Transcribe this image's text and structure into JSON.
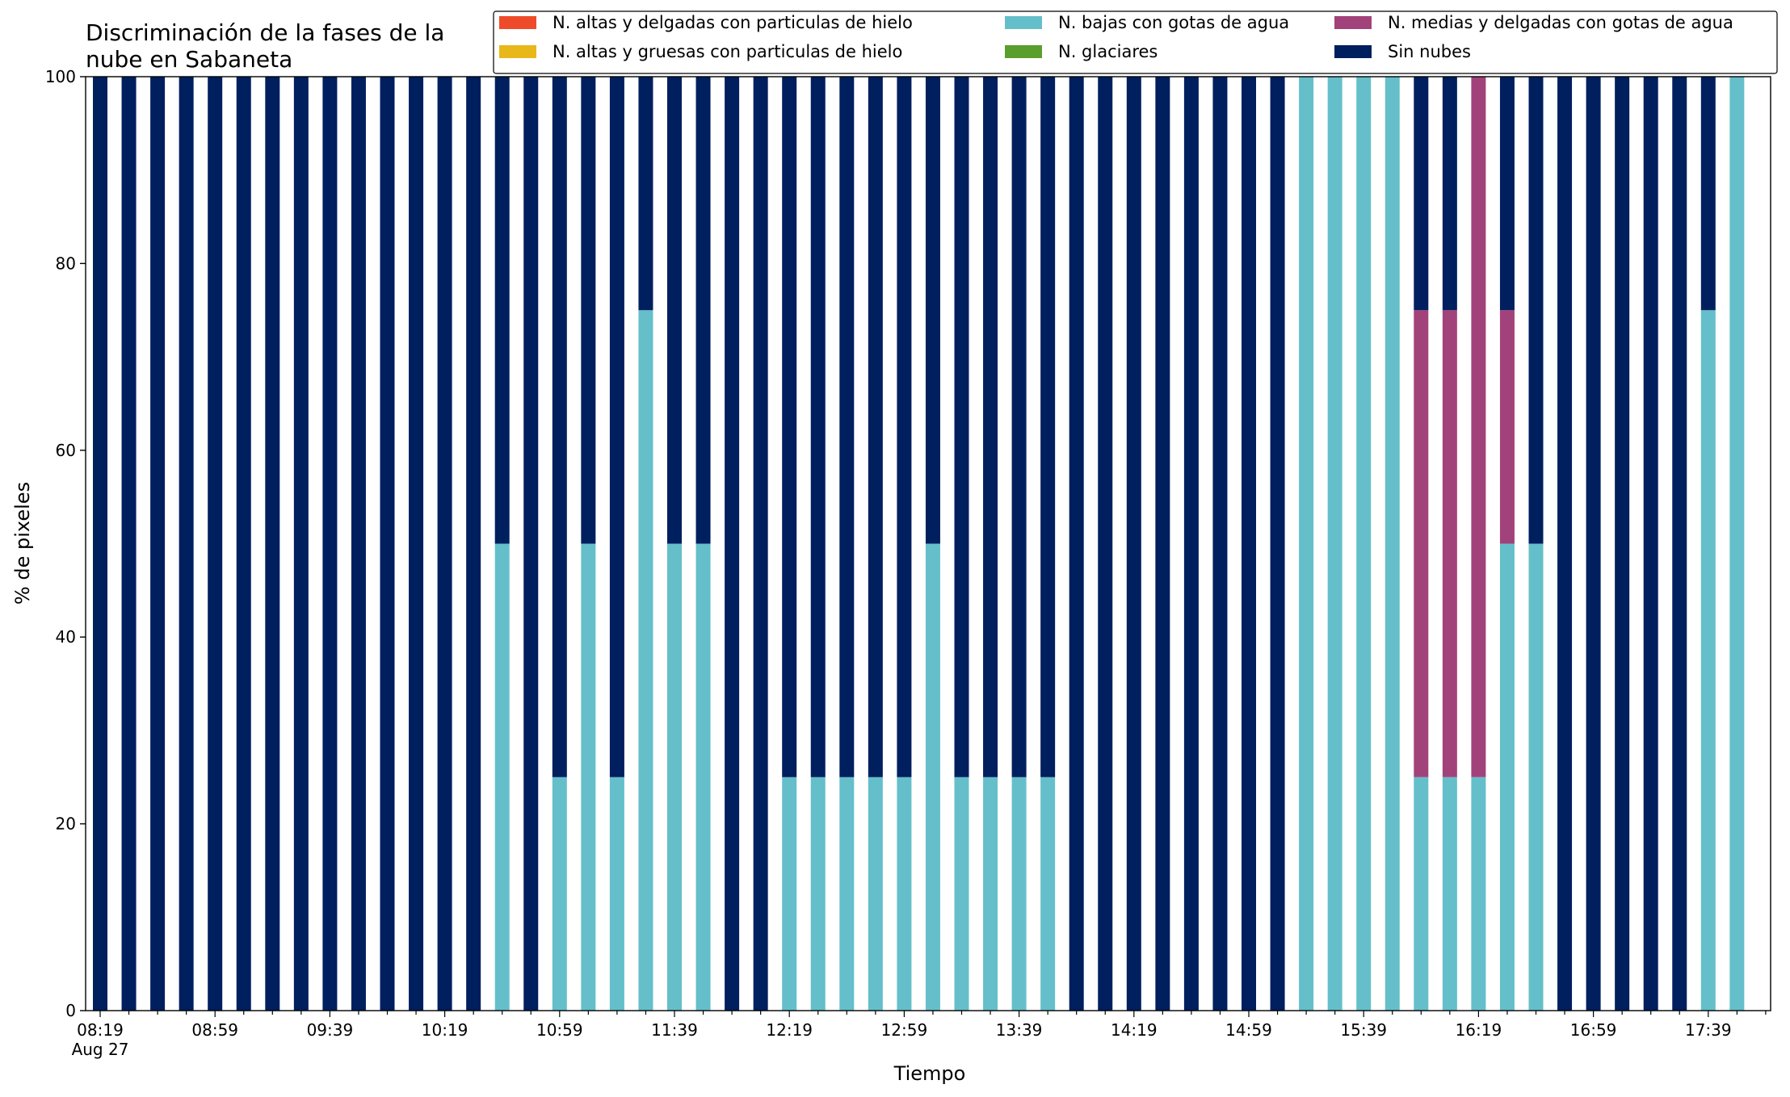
{
  "chart_data": {
    "type": "bar",
    "stacked": true,
    "title": "Discriminación de la fases de la\nnube en Sabaneta",
    "xlabel": "Tiempo",
    "ylabel": "% de pixeles",
    "ylim": [
      0,
      100
    ],
    "yticks": [
      0,
      20,
      40,
      60,
      80,
      100
    ],
    "xticklabels": [
      "08:19\nAug 27",
      "08:59",
      "09:39",
      "10:19",
      "10:59",
      "11:39",
      "12:19",
      "12:59",
      "13:39",
      "14:19",
      "14:59",
      "15:39",
      "16:19",
      "16:59",
      "17:39"
    ],
    "x": [
      "08:19",
      "08:29",
      "08:39",
      "08:49",
      "08:59",
      "09:09",
      "09:19",
      "09:29",
      "09:39",
      "09:49",
      "09:59",
      "10:09",
      "10:19",
      "10:29",
      "10:39",
      "10:49",
      "10:59",
      "11:09",
      "11:19",
      "11:29",
      "11:39",
      "11:49",
      "11:59",
      "12:09",
      "12:19",
      "12:29",
      "12:39",
      "12:49",
      "12:59",
      "13:09",
      "13:19",
      "13:29",
      "13:39",
      "13:49",
      "13:59",
      "14:09",
      "14:19",
      "14:29",
      "14:39",
      "14:49",
      "14:59",
      "15:09",
      "15:19",
      "15:29",
      "15:39",
      "15:49",
      "15:59",
      "16:09",
      "16:19",
      "16:29",
      "16:39",
      "16:49",
      "16:59",
      "17:09",
      "17:19",
      "17:29",
      "17:39",
      "17:49"
    ],
    "grid": false,
    "legend_position": "top-right",
    "legend_columns": 3,
    "series": [
      {
        "name": "N. altas y delgadas con particulas de hielo",
        "color": "#ee4b2b",
        "values": [
          0,
          0,
          0,
          0,
          0,
          0,
          0,
          0,
          0,
          0,
          0,
          0,
          0,
          0,
          0,
          0,
          0,
          0,
          0,
          0,
          0,
          0,
          0,
          0,
          0,
          0,
          0,
          0,
          0,
          0,
          0,
          0,
          0,
          0,
          0,
          0,
          0,
          0,
          0,
          0,
          0,
          0,
          0,
          0,
          0,
          0,
          0,
          0,
          0,
          0,
          0,
          0,
          0,
          0,
          0,
          0,
          0,
          0
        ]
      },
      {
        "name": "N. altas y gruesas con particulas de hielo",
        "color": "#e8b81a",
        "values": [
          0,
          0,
          0,
          0,
          0,
          0,
          0,
          0,
          0,
          0,
          0,
          0,
          0,
          0,
          0,
          0,
          0,
          0,
          0,
          0,
          0,
          0,
          0,
          0,
          0,
          0,
          0,
          0,
          0,
          0,
          0,
          0,
          0,
          0,
          0,
          0,
          0,
          0,
          0,
          0,
          0,
          0,
          0,
          0,
          0,
          0,
          0,
          0,
          0,
          0,
          0,
          0,
          0,
          0,
          0,
          0,
          0,
          0
        ]
      },
      {
        "name": "N. bajas con gotas de agua",
        "color": "#64bfca",
        "values": [
          0,
          0,
          0,
          0,
          0,
          0,
          0,
          0,
          0,
          0,
          0,
          0,
          0,
          0,
          50,
          0,
          25,
          50,
          25,
          75,
          50,
          50,
          0,
          0,
          25,
          25,
          25,
          25,
          25,
          50,
          25,
          25,
          25,
          25,
          0,
          0,
          0,
          0,
          0,
          0,
          0,
          0,
          100,
          100,
          100,
          100,
          25,
          25,
          25,
          50,
          50,
          0,
          0,
          0,
          0,
          0,
          75,
          100
        ]
      },
      {
        "name": "N. glaciares",
        "color": "#5a9e2e",
        "values": [
          0,
          0,
          0,
          0,
          0,
          0,
          0,
          0,
          0,
          0,
          0,
          0,
          0,
          0,
          0,
          0,
          0,
          0,
          0,
          0,
          0,
          0,
          0,
          0,
          0,
          0,
          0,
          0,
          0,
          0,
          0,
          0,
          0,
          0,
          0,
          0,
          0,
          0,
          0,
          0,
          0,
          0,
          0,
          0,
          0,
          0,
          0,
          0,
          0,
          0,
          0,
          0,
          0,
          0,
          0,
          0,
          0,
          0
        ]
      },
      {
        "name": "N. medias y delgadas con gotas de agua",
        "color": "#a2427a",
        "values": [
          0,
          0,
          0,
          0,
          0,
          0,
          0,
          0,
          0,
          0,
          0,
          0,
          0,
          0,
          0,
          0,
          0,
          0,
          0,
          0,
          0,
          0,
          0,
          0,
          0,
          0,
          0,
          0,
          0,
          0,
          0,
          0,
          0,
          0,
          0,
          0,
          0,
          0,
          0,
          0,
          0,
          0,
          0,
          0,
          0,
          0,
          50,
          50,
          75,
          25,
          0,
          0,
          0,
          0,
          0,
          0,
          0,
          0
        ]
      },
      {
        "name": "Sin nubes",
        "color": "#001f5e",
        "values": [
          100,
          100,
          100,
          100,
          100,
          100,
          100,
          100,
          100,
          100,
          100,
          100,
          100,
          100,
          50,
          100,
          75,
          50,
          75,
          25,
          50,
          50,
          100,
          100,
          75,
          75,
          75,
          75,
          75,
          50,
          75,
          75,
          75,
          75,
          100,
          100,
          100,
          100,
          100,
          100,
          100,
          100,
          0,
          0,
          0,
          0,
          25,
          25,
          0,
          25,
          50,
          100,
          100,
          100,
          100,
          100,
          25,
          0
        ]
      }
    ]
  }
}
